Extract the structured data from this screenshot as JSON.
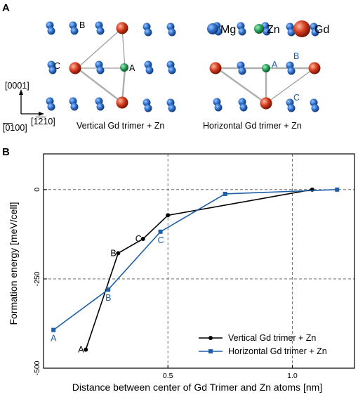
{
  "panel_a": {
    "letter": "A",
    "legend": {
      "mg": "Mg",
      "zn": "Zn",
      "gd": "Gd"
    },
    "axes": {
      "up": "[0001]",
      "right": "[1̅2̅10]",
      "origin": "[̅0̅100]"
    },
    "left_caption": "Vertical Gd trimer + Zn",
    "right_caption": "Horizontal Gd trimer + Zn",
    "left_site_labels": [
      "A",
      "B",
      "C"
    ],
    "right_site_labels": [
      "A",
      "B",
      "C"
    ],
    "colors": {
      "mg": "#2f6fc9",
      "zn": "#2aa05a",
      "gd": "#c8321a"
    }
  },
  "panel_b": {
    "letter": "B",
    "ylabel": "Formation energy [meV/cell]",
    "xlabel": "Distance between center of Gd Trimer and Zn atoms [nm]"
  },
  "chart_data": {
    "type": "line",
    "xlabel": "Distance between center of Gd Trimer and Zn atoms [nm]",
    "ylabel": "Formation energy [meV/cell]",
    "xlim": [
      0.0,
      1.25
    ],
    "ylim": [
      -500,
      100
    ],
    "xticks": [
      0.5,
      1.0
    ],
    "xtick_labels": [
      "0.5",
      "1.0"
    ],
    "yticks": [
      0,
      -250,
      -500
    ],
    "ytick_labels": [
      "0",
      "-250",
      "-500"
    ],
    "grid": true,
    "grid_style": "dashed",
    "legend_position": "bottom-right",
    "series": [
      {
        "name": "Vertical Gd trimer + Zn",
        "color": "#000000",
        "marker": "circle",
        "x": [
          0.17,
          0.3,
          0.4,
          0.5,
          1.08
        ],
        "y": [
          -448,
          -178,
          -138,
          -72,
          0
        ],
        "point_labels": [
          "A",
          "B",
          "C",
          "",
          ""
        ]
      },
      {
        "name": "Horizontal Gd trimer + Zn",
        "color": "#1f5fa8",
        "marker": "square",
        "x": [
          0.04,
          0.26,
          0.47,
          0.73,
          1.18
        ],
        "y": [
          -393,
          -280,
          -118,
          -12,
          0
        ],
        "point_labels": [
          "A",
          "B",
          "C",
          "",
          ""
        ]
      }
    ]
  }
}
